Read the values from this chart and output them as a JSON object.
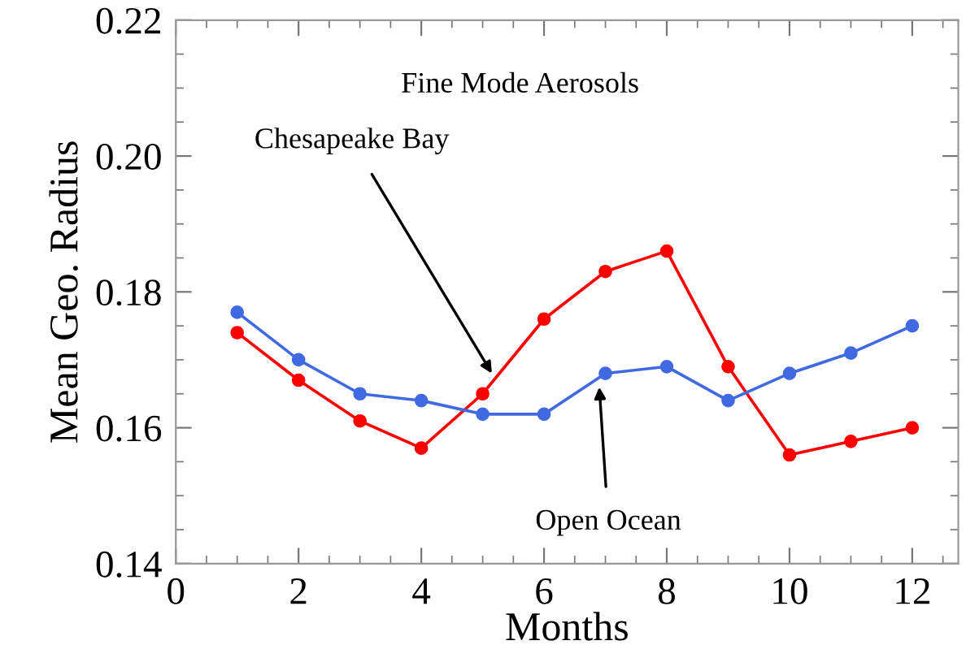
{
  "chart_data": {
    "type": "line",
    "xlabel": "Months",
    "ylabel": "Mean Geo. Radius",
    "x": [
      1,
      2,
      3,
      4,
      5,
      6,
      7,
      8,
      9,
      10,
      11,
      12
    ],
    "series": [
      {
        "color": "#ff0000",
        "values": [
          0.174,
          0.167,
          0.161,
          0.157,
          0.165,
          0.176,
          0.183,
          0.186,
          0.169,
          0.156,
          0.158,
          0.16
        ]
      },
      {
        "color": "#4169e1",
        "values": [
          0.177,
          0.17,
          0.165,
          0.164,
          0.162,
          0.162,
          0.168,
          0.169,
          0.164,
          0.168,
          0.171,
          0.175
        ]
      }
    ],
    "annotations": [
      "Fine Mode Aerosols",
      {
        "text": "Chesapeake Bay",
        "x": 5.15,
        "y": 0.168
      },
      {
        "text": "Open Ocean",
        "x": 6.9,
        "y": 0.166
      }
    ],
    "xlim": [
      0,
      12.75
    ],
    "xticks": [
      0,
      2,
      4,
      6,
      8,
      10,
      12
    ],
    "ylim": [
      0.14,
      0.22
    ],
    "yticks": [
      {
        "value": 0.14,
        "label": "0.14"
      },
      {
        "value": 0.16,
        "label": "0.16"
      },
      {
        "value": 0.18,
        "label": "0.18"
      },
      {
        "value": 0.2,
        "label": "0.20"
      },
      {
        "value": 0.22,
        "label": "0.22"
      }
    ],
    "grid": false,
    "legend": false,
    "marker": "circle",
    "line_style": "solid"
  }
}
